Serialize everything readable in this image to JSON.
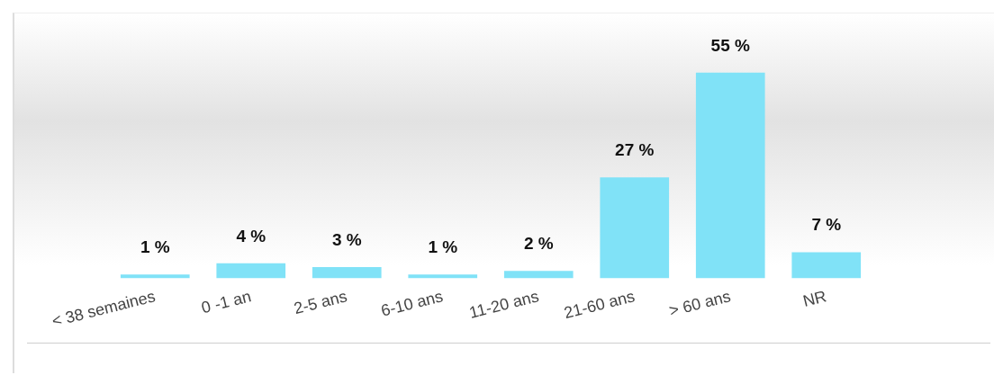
{
  "chart_data": {
    "type": "bar",
    "categories": [
      "< 38 semaines",
      "0 -1 an",
      "2-5 ans",
      "6-10 ans",
      "11-20 ans",
      "21-60 ans",
      "> 60 ans",
      "NR"
    ],
    "values": [
      1,
      4,
      3,
      1,
      2,
      27,
      55,
      7
    ],
    "value_labels": [
      "1 %",
      "4 %",
      "3 %",
      "1 %",
      "2 %",
      "27 %",
      "55 %",
      "7 %"
    ],
    "color": "#80e2f7",
    "grid": false,
    "legend": false
  }
}
